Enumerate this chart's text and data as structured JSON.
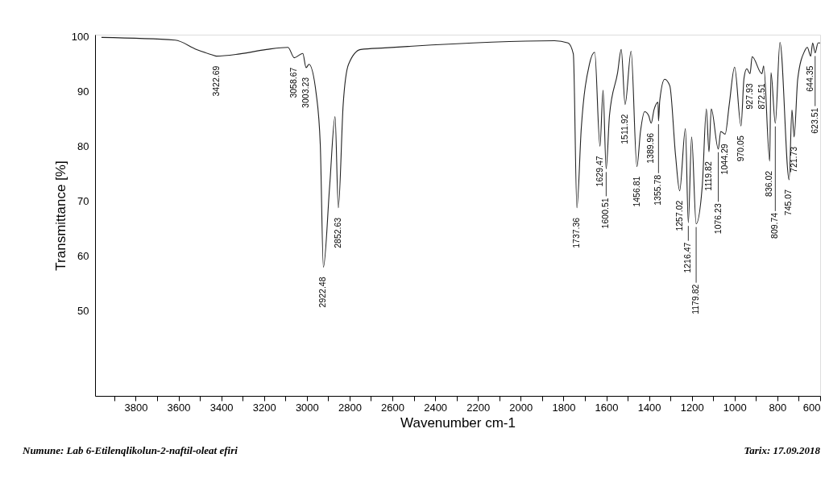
{
  "chart_data": {
    "type": "line",
    "xlabel": "Wavenumber cm-1",
    "ylabel": "Transmittance [%]",
    "xlim": [
      3990,
      600
    ],
    "ylim": [
      34.6,
      100.3
    ],
    "xticks": [
      {
        "value": 3900,
        "label": null
      },
      3800,
      {
        "value": 3700,
        "label": null
      },
      3600,
      {
        "value": 3500,
        "label": null
      },
      3400,
      {
        "value": 3300,
        "label": null
      },
      3200,
      {
        "value": 3100,
        "label": null
      },
      3000,
      {
        "value": 2900,
        "label": null
      },
      2800,
      {
        "value": 2700,
        "label": null
      },
      2600,
      {
        "value": 2500,
        "label": null
      },
      2400,
      {
        "value": 2300,
        "label": null
      },
      2200,
      {
        "value": 2100,
        "label": null
      },
      2000,
      {
        "value": 1900,
        "label": null
      },
      1800,
      {
        "value": 1700,
        "label": null
      },
      1600,
      {
        "value": 1500,
        "label": null
      },
      1400,
      {
        "value": 1300,
        "label": null
      },
      1200,
      {
        "value": 1100,
        "label": null
      },
      1000,
      {
        "value": 900,
        "label": null
      },
      800,
      {
        "value": 700,
        "label": null
      },
      600
    ],
    "yticks": [
      50,
      60,
      70,
      80,
      90,
      100
    ],
    "grid": false,
    "marker": "none",
    "line_style": "solid",
    "series": [
      {
        "color": "#222222",
        "x": [
          3960,
          3616,
          3515,
          3440,
          3422.69,
          3314,
          3189,
          3088,
          3058.67,
          3019,
          3003.23,
          2990,
          2956,
          2937,
          2922.48,
          2893,
          2868,
          2852.63,
          2830,
          2805,
          2748,
          2635,
          1842,
          1779,
          1754,
          1737.36,
          1717,
          1679,
          1654,
          1629.47,
          1615,
          1600.51,
          1585,
          1547,
          1530,
          1511.92,
          1484,
          1456.81,
          1440,
          1421,
          1402,
          1389.96,
          1377,
          1358,
          1355.78,
          1350,
          1327,
          1303,
          1276,
          1257.02,
          1230,
          1216.47,
          1201,
          1179.82,
          1151,
          1132,
          1119.82,
          1109,
          1076.23,
          1065,
          1044.29,
          1025,
          1000,
          970.05,
          956,
          943,
          927.93,
          918,
          872.51,
          864,
          836.02,
          830,
          809.74,
          788,
          745.07,
          732,
          721.73,
          705,
          673,
          660,
          644.35,
          635,
          623.51,
          610,
          600
        ],
        "values": [
          99.8,
          99.3,
          97.6,
          96.6,
          96.4,
          96.8,
          97.6,
          98.0,
          96.1,
          96.9,
          94.3,
          94.9,
          89.5,
          80.2,
          58.0,
          72.9,
          85.4,
          68.8,
          87.6,
          94.9,
          97.6,
          97.9,
          99.2,
          98.8,
          96.8,
          68.8,
          83.2,
          94.9,
          97.1,
          80.0,
          90.2,
          75.9,
          85.6,
          93.4,
          97.6,
          87.6,
          97.3,
          76.3,
          82.7,
          86.3,
          85.6,
          84.2,
          86.6,
          88.0,
          84.6,
          88.3,
          92.2,
          91.0,
          78.3,
          71.9,
          83.2,
          66.1,
          81.7,
          65.9,
          72.9,
          86.8,
          79.0,
          86.8,
          79.5,
          82.7,
          82.2,
          87.6,
          94.4,
          83.7,
          92.4,
          94.1,
          93.2,
          96.3,
          93.2,
          94.6,
          77.3,
          93.4,
          84.2,
          98.9,
          73.9,
          86.6,
          81.7,
          92.2,
          97.3,
          98.0,
          96.4,
          98.8,
          97.0,
          98.8,
          98.8
        ]
      }
    ],
    "annotations": [
      {
        "text": "3422.69",
        "x": 3422.69,
        "y": 96.4
      },
      {
        "text": "3058.67",
        "x": 3058.67,
        "y": 96.1
      },
      {
        "text": "3003.23",
        "x": 3003.23,
        "y": 94.3
      },
      {
        "text": "2922.48",
        "x": 2922.48,
        "y": 58.0
      },
      {
        "text": "2852.63",
        "x": 2852.63,
        "y": 68.8
      },
      {
        "text": "1737.36",
        "x": 1737.36,
        "y": 68.8
      },
      {
        "text": "1629.47",
        "x": 1629.47,
        "y": 80.0
      },
      {
        "text": "1600.51",
        "x": 1600.51,
        "y": 75.9
      },
      {
        "text": "1511.92",
        "x": 1511.92,
        "y": 87.6
      },
      {
        "text": "1456.81",
        "x": 1456.81,
        "y": 76.3
      },
      {
        "text": "1389.96",
        "x": 1389.96,
        "y": 84.2
      },
      {
        "text": "1355.78",
        "x": 1355.78,
        "y": 84.6
      },
      {
        "text": "1257.02",
        "x": 1257.02,
        "y": 71.9
      },
      {
        "text": "1216.47",
        "x": 1216.47,
        "y": 66.1
      },
      {
        "text": "1179.82",
        "x": 1179.82,
        "y": 65.9
      },
      {
        "text": "1119.82",
        "x": 1119.82,
        "y": 79.0
      },
      {
        "text": "1076.23",
        "x": 1076.23,
        "y": 79.5
      },
      {
        "text": "1044.29",
        "x": 1044.29,
        "y": 82.2
      },
      {
        "text": "970.05",
        "x": 970.05,
        "y": 83.7
      },
      {
        "text": "927.93",
        "x": 927.93,
        "y": 93.2
      },
      {
        "text": "872.51",
        "x": 872.51,
        "y": 93.2
      },
      {
        "text": "836.02",
        "x": 836.02,
        "y": 77.3
      },
      {
        "text": "809.74",
        "x": 809.74,
        "y": 84.2
      },
      {
        "text": "745.07",
        "x": 745.07,
        "y": 73.9
      },
      {
        "text": "721.73",
        "x": 721.73,
        "y": 81.7
      },
      {
        "text": "644.35",
        "x": 644.35,
        "y": 96.4
      },
      {
        "text": "623.51",
        "x": 623.51,
        "y": 97.0
      },
      "Numune: Lab 6-Etilenqlikolun-2-naftil-oleat efiri",
      "Tarix: 17.09.2018"
    ]
  }
}
